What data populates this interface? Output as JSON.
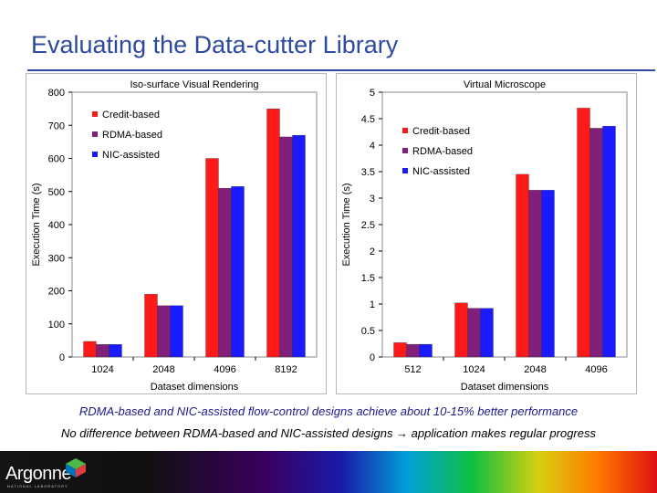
{
  "slide": {
    "title": "Evaluating the Data-cutter Library",
    "caption1": "RDMA-based and NIC-assisted flow-control designs achieve about 10-15% better performance",
    "caption2": "No difference between RDMA-based and NIC-assisted designs → application makes regular progress"
  },
  "footer": {
    "logo_text": "Argonne",
    "logo_subtext": "NATIONAL LABORATORY"
  },
  "colors": {
    "credit": "#ff1a1a",
    "rdma": "#80207a",
    "nic": "#1a1aff",
    "title": "#2e4a9e"
  },
  "chart_data": [
    {
      "type": "bar",
      "title": "Iso-surface Visual Rendering",
      "xlabel": "Dataset dimensions",
      "ylabel": "Execution Time (s)",
      "ylim": [
        0,
        800
      ],
      "yticks": [
        "0",
        "100",
        "200",
        "300",
        "400",
        "500",
        "600",
        "700",
        "800"
      ],
      "categories": [
        "1024",
        "2048",
        "4096",
        "8192"
      ],
      "legend_position": "top-left",
      "grid": false,
      "series": [
        {
          "name": "Credit-based",
          "values": [
            47,
            190,
            600,
            750
          ]
        },
        {
          "name": "RDMA-based",
          "values": [
            38,
            155,
            510,
            665
          ]
        },
        {
          "name": "NIC-assisted",
          "values": [
            38,
            155,
            515,
            670
          ]
        }
      ]
    },
    {
      "type": "bar",
      "title": "Virtual Microscope",
      "xlabel": "Dataset dimensions",
      "ylabel": "Execution Time (s)",
      "ylim": [
        0,
        5
      ],
      "yticks": [
        "0",
        "0.5",
        "1",
        "1.5",
        "2",
        "2.5",
        "3",
        "3.5",
        "4",
        "4.5",
        "5"
      ],
      "categories": [
        "512",
        "1024",
        "2048",
        "4096"
      ],
      "legend_position": "top-left",
      "grid": false,
      "series": [
        {
          "name": "Credit-based",
          "values": [
            0.27,
            1.02,
            3.45,
            4.7
          ]
        },
        {
          "name": "RDMA-based",
          "values": [
            0.24,
            0.92,
            3.15,
            4.32
          ]
        },
        {
          "name": "NIC-assisted",
          "values": [
            0.24,
            0.92,
            3.15,
            4.36
          ]
        }
      ]
    }
  ]
}
